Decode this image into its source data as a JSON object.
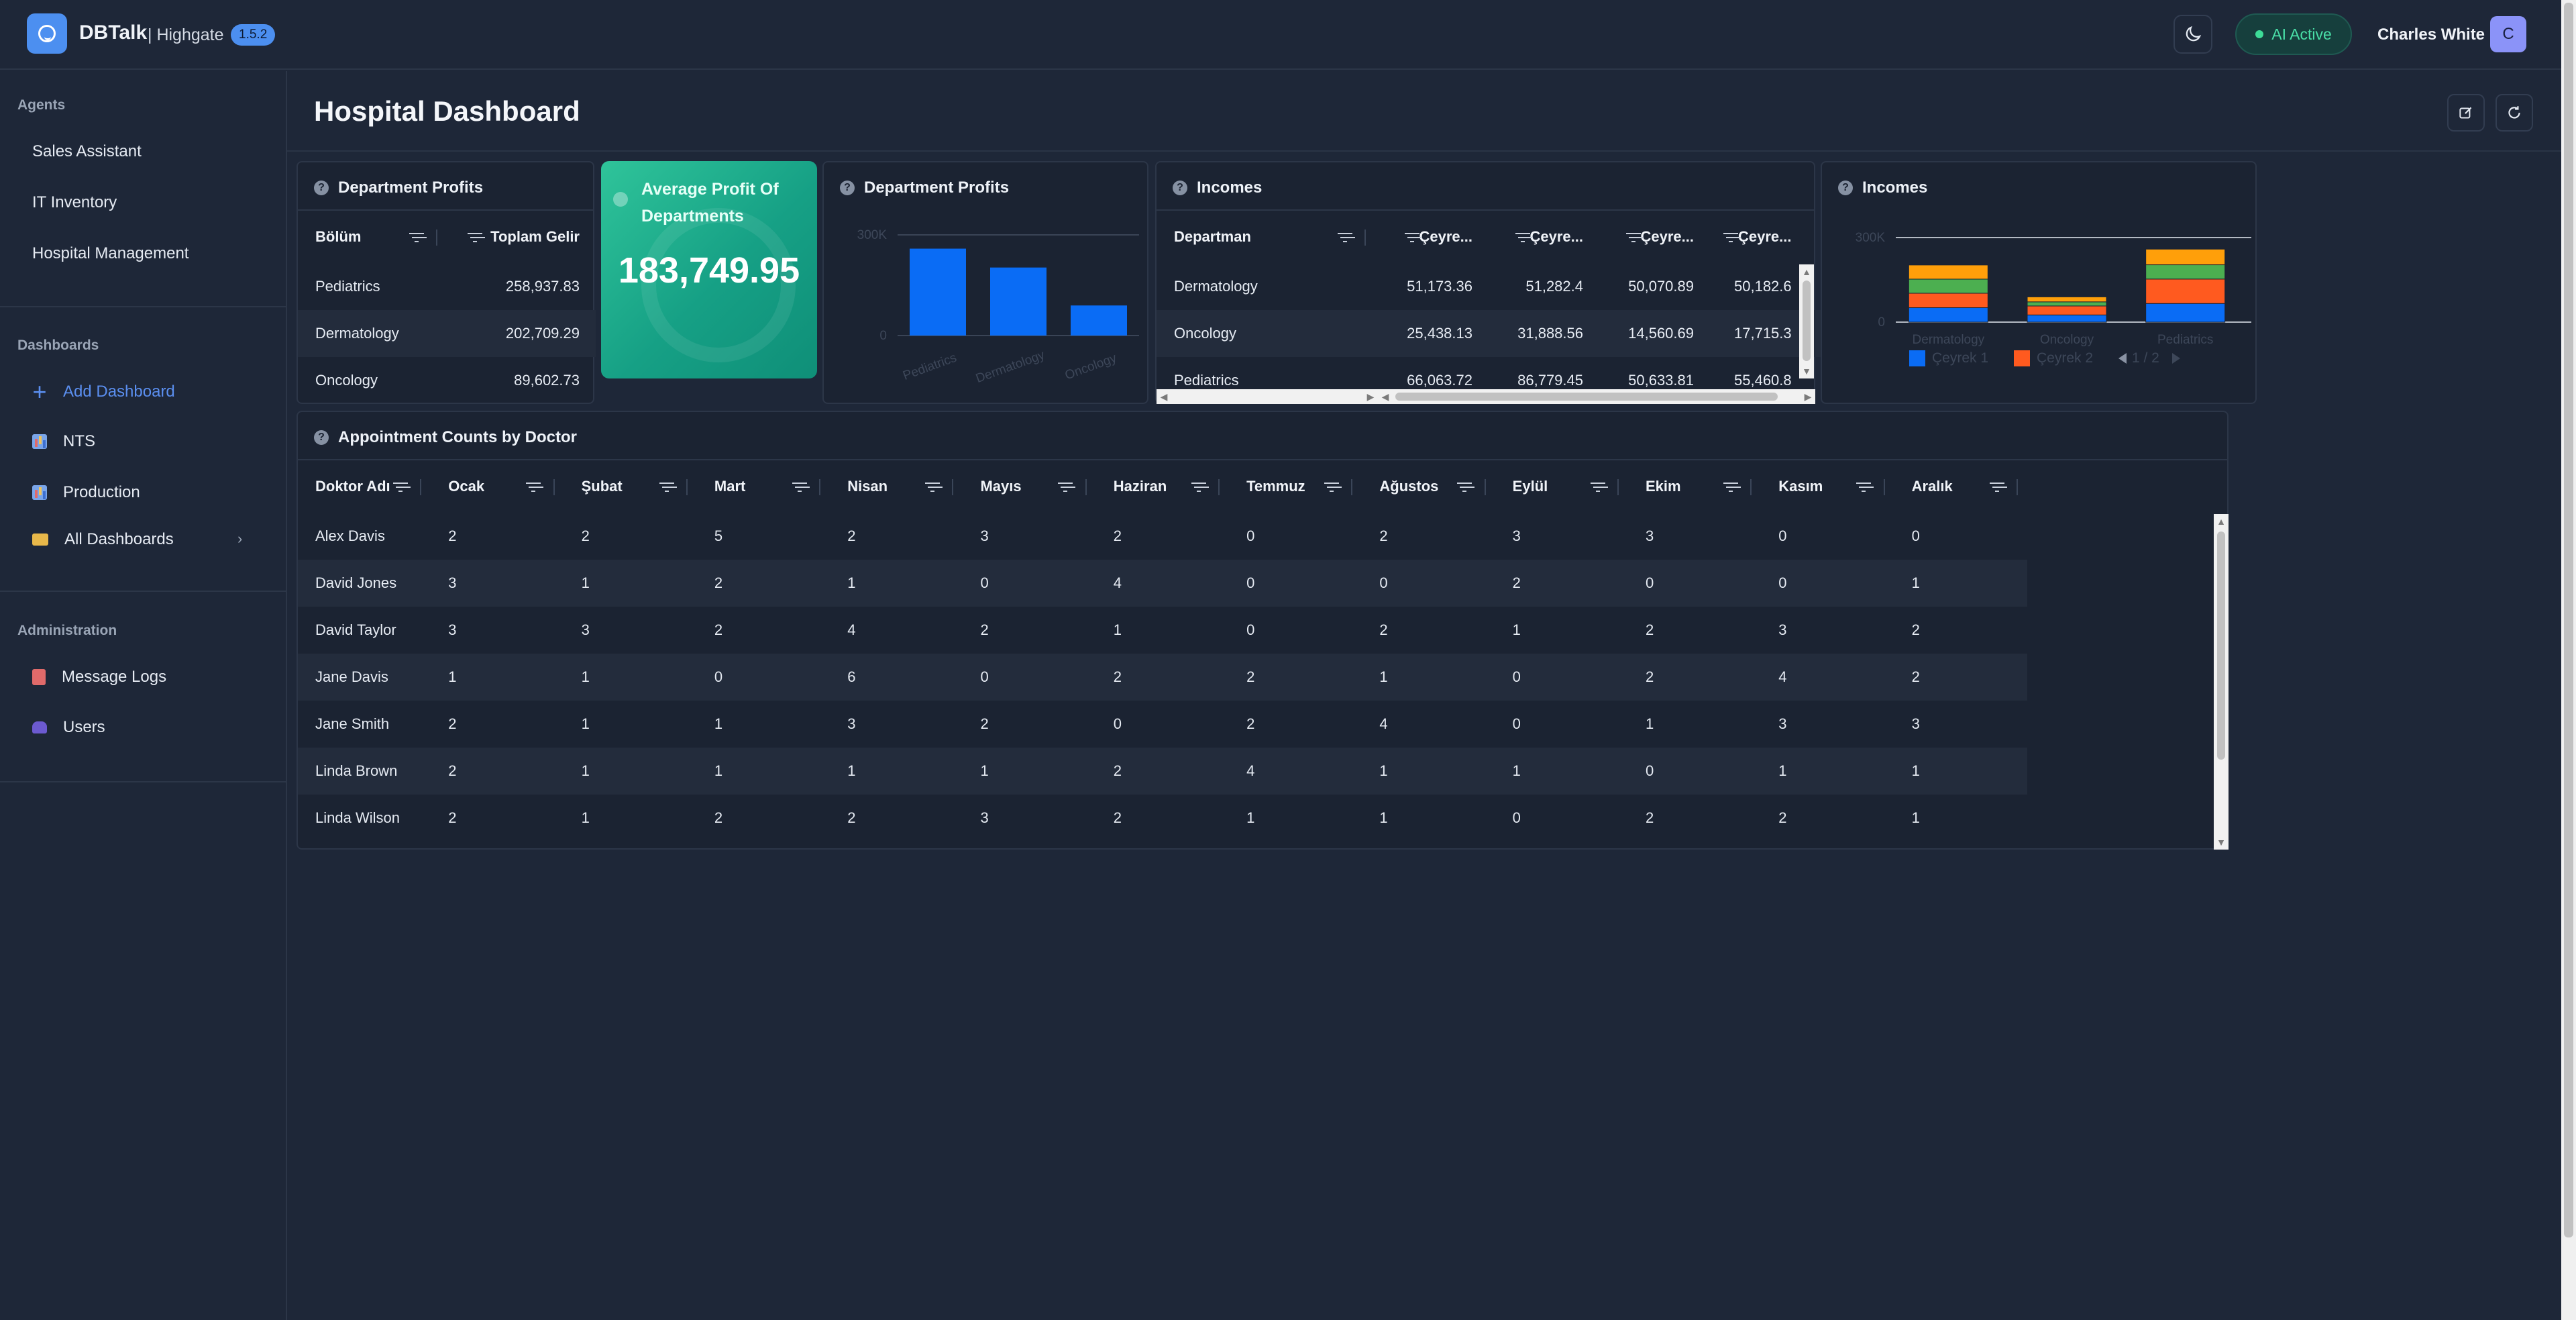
{
  "app": {
    "name": "DBTalk",
    "org": "| Highgate",
    "version": "1.5.2",
    "ai_status": "AI Active",
    "user_name": "Charles White",
    "user_initial": "C"
  },
  "sidebar": {
    "agents_label": "Agents",
    "agents": [
      "Sales Assistant",
      "IT Inventory",
      "Hospital Management"
    ],
    "dashboards_label": "Dashboards",
    "add_dashboard": "Add Dashboard",
    "dashboards": [
      "NTS",
      "Production"
    ],
    "all_dashboards": "All Dashboards",
    "admin_label": "Administration",
    "admin": [
      "Message Logs",
      "Users"
    ]
  },
  "page": {
    "title": "Hospital Dashboard"
  },
  "dept_profits_table": {
    "title": "Department Profits",
    "columns": [
      "Bölüm",
      "Toplam Gelir"
    ],
    "rows": [
      [
        "Pediatrics",
        "258,937.83"
      ],
      [
        "Dermatology",
        "202,709.29"
      ],
      [
        "Oncology",
        "89,602.73"
      ]
    ]
  },
  "kpi": {
    "title": "Average Profit Of Departments",
    "value": "183,749.95"
  },
  "dept_profits_chart": {
    "title": "Department Profits",
    "color": "#0a6cf5"
  },
  "incomes_table": {
    "title": "Incomes",
    "columns": [
      "Departman",
      "Çeyre...",
      "Çeyre...",
      "Çeyre...",
      "Çeyre..."
    ],
    "rows": [
      [
        "Dermatology",
        "51,173.36",
        "51,282.4",
        "50,070.89",
        "50,182.6"
      ],
      [
        "Oncology",
        "25,438.13",
        "31,888.56",
        "14,560.69",
        "17,715.3"
      ],
      [
        "Pediatrics",
        "66,063.72",
        "86,779.45",
        "50,633.81",
        "55,460.8"
      ]
    ]
  },
  "incomes_chart": {
    "title": "Incomes",
    "legend": [
      "Çeyrek 1",
      "Çeyrek 2"
    ],
    "pager": "1 / 2",
    "colors": [
      "#0a6cf5",
      "#ff5a1f",
      "#4caf50",
      "#ff9f0a"
    ]
  },
  "appointments": {
    "title": "Appointment Counts by Doctor",
    "columns": [
      "Doktor Adı",
      "Ocak",
      "Şubat",
      "Mart",
      "Nisan",
      "Mayıs",
      "Haziran",
      "Temmuz",
      "Ağustos",
      "Eylül",
      "Ekim",
      "Kasım",
      "Aralık"
    ],
    "rows": [
      [
        "Alex Davis",
        "2",
        "2",
        "5",
        "2",
        "3",
        "2",
        "0",
        "2",
        "3",
        "3",
        "0",
        "0"
      ],
      [
        "David Jones",
        "3",
        "1",
        "2",
        "1",
        "0",
        "4",
        "0",
        "0",
        "2",
        "0",
        "0",
        "1"
      ],
      [
        "David Taylor",
        "3",
        "3",
        "2",
        "4",
        "2",
        "1",
        "0",
        "2",
        "1",
        "2",
        "3",
        "2"
      ],
      [
        "Jane Davis",
        "1",
        "1",
        "0",
        "6",
        "0",
        "2",
        "2",
        "1",
        "0",
        "2",
        "4",
        "2"
      ],
      [
        "Jane Smith",
        "2",
        "1",
        "1",
        "3",
        "2",
        "0",
        "2",
        "4",
        "0",
        "1",
        "3",
        "3"
      ],
      [
        "Linda Brown",
        "2",
        "1",
        "1",
        "1",
        "1",
        "2",
        "4",
        "1",
        "1",
        "0",
        "1",
        "1"
      ],
      [
        "Linda Wilson",
        "2",
        "1",
        "2",
        "2",
        "3",
        "2",
        "1",
        "1",
        "0",
        "2",
        "2",
        "1"
      ]
    ]
  },
  "chart_data": [
    {
      "type": "bar",
      "title": "Department Profits",
      "categories": [
        "Pediatrics",
        "Dermatology",
        "Oncology"
      ],
      "values": [
        258937.83,
        202709.29,
        89602.73
      ],
      "ylim": [
        0,
        300000
      ],
      "yticks": [
        "0",
        "300K"
      ],
      "grid": false
    },
    {
      "type": "bar",
      "stacked": true,
      "title": "Incomes",
      "categories": [
        "Dermatology",
        "Oncology",
        "Pediatrics"
      ],
      "series": [
        {
          "name": "Çeyrek 1",
          "values": [
            51173.36,
            25438.13,
            66063.72
          ]
        },
        {
          "values": [
            51282.4,
            31888.56,
            86779.45
          ]
        },
        {
          "values": [
            50070.89,
            14560.69,
            50633.81
          ]
        },
        {
          "values": [
            50182.6,
            17715.3,
            55460.8
          ]
        }
      ],
      "ylim": [
        0,
        300000
      ],
      "yticks": [
        "0",
        "300K"
      ],
      "legend": "bottom"
    }
  ]
}
